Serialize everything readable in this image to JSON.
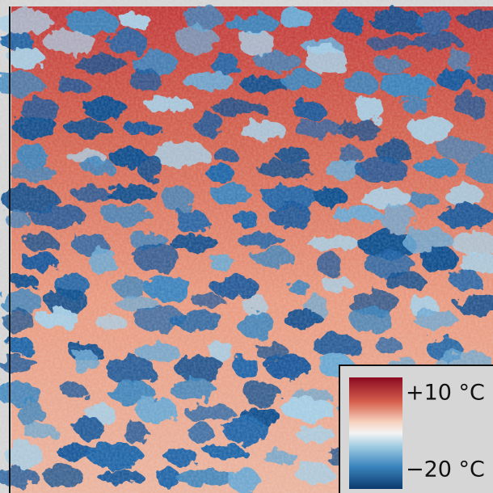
{
  "colorbar": {
    "max_label": "+10 °C",
    "min_label": "−20 °C"
  }
}
